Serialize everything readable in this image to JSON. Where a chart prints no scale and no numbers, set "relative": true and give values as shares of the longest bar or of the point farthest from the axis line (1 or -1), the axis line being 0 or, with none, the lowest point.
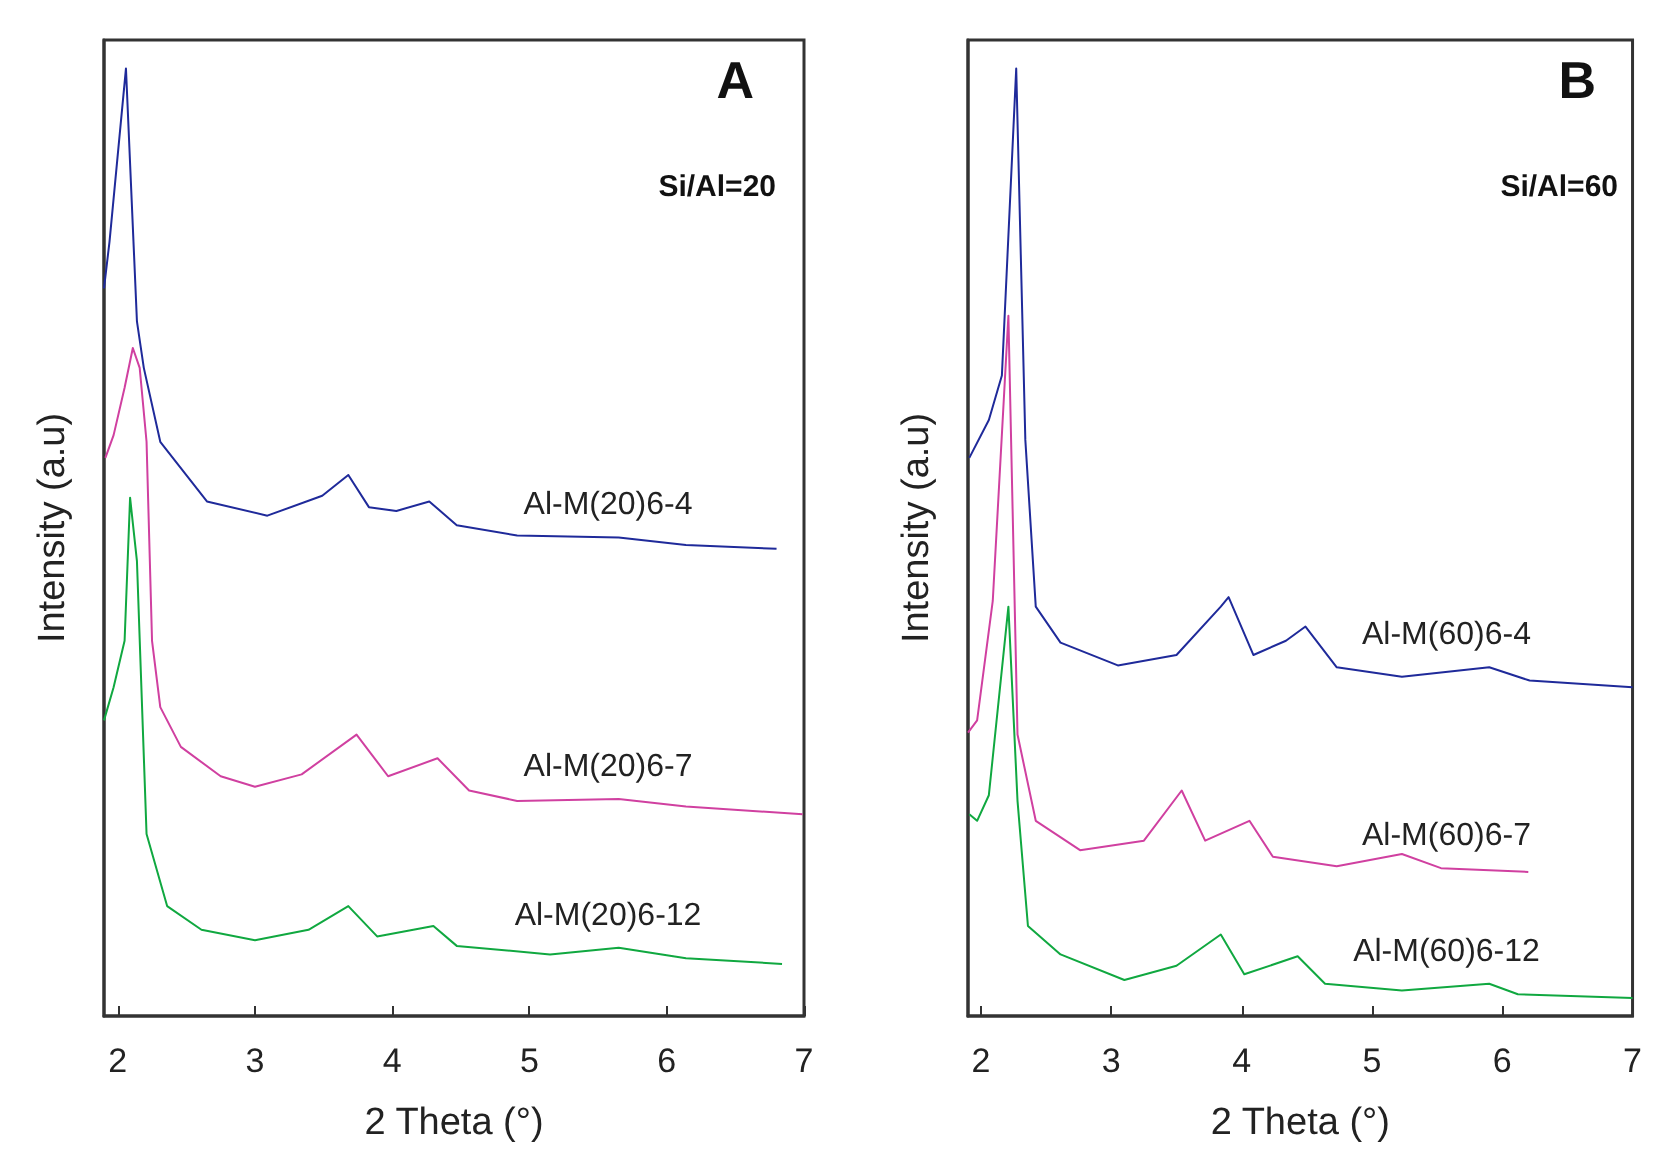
{
  "chart_data": [
    {
      "type": "line",
      "title": "A",
      "xlabel": "2 Theta (°)",
      "ylabel": "Intensity (a.u)",
      "annotations": [
        "Si/Al=20"
      ],
      "relative": true,
      "xlim": [
        1.9,
        7
      ],
      "xticks": [
        2,
        3,
        4,
        5,
        6,
        7
      ],
      "tick_labels": "x",
      "grid": false,
      "legend": false,
      "marker": "none",
      "line_style": "solid",
      "series": [
        {
          "name": "Al-M(20)6-4",
          "color": "#1f2a9a",
          "x": [
            1.9,
            1.94,
            2.06,
            2.14,
            2.19,
            2.31,
            2.65,
            3.09,
            3.49,
            3.68,
            3.83,
            4.03,
            4.27,
            4.47,
            4.91,
            5.65,
            6.14,
            6.8
          ],
          "values": [
            0.768,
            0.817,
            1.0,
            0.733,
            0.684,
            0.606,
            0.543,
            0.528,
            0.549,
            0.571,
            0.537,
            0.533,
            0.543,
            0.518,
            0.507,
            0.505,
            0.497,
            0.493
          ]
        },
        {
          "name": "Al-M(20)6-7",
          "color": "#d040a0",
          "x": [
            1.91,
            1.97,
            2.05,
            2.11,
            2.16,
            2.21,
            2.25,
            2.31,
            2.46,
            2.75,
            3.0,
            3.34,
            3.74,
            3.97,
            4.33,
            4.56,
            4.91,
            5.65,
            6.14,
            6.99
          ],
          "values": [
            0.589,
            0.613,
            0.663,
            0.705,
            0.684,
            0.606,
            0.396,
            0.326,
            0.284,
            0.253,
            0.242,
            0.255,
            0.297,
            0.253,
            0.272,
            0.238,
            0.227,
            0.229,
            0.221,
            0.213
          ]
        },
        {
          "name": "Al-M(20)6-12",
          "color": "#10a840",
          "x": [
            1.9,
            1.97,
            2.05,
            2.09,
            2.14,
            2.21,
            2.36,
            2.61,
            3.0,
            3.39,
            3.68,
            3.89,
            4.3,
            4.47,
            5.15,
            5.65,
            6.14,
            6.84
          ],
          "values": [
            0.312,
            0.347,
            0.396,
            0.547,
            0.48,
            0.192,
            0.116,
            0.091,
            0.08,
            0.091,
            0.116,
            0.084,
            0.095,
            0.074,
            0.065,
            0.072,
            0.061,
            0.055
          ]
        }
      ]
    },
    {
      "type": "line",
      "title": "B",
      "xlabel": "2 Theta (°)",
      "ylabel": "Intensity (a.u)",
      "annotations": [
        "Si/Al=60"
      ],
      "relative": true,
      "xlim": [
        1.9,
        7
      ],
      "xticks": [
        2,
        3,
        4,
        5,
        6,
        7
      ],
      "tick_labels": "x",
      "grid": false,
      "legend": false,
      "marker": "none",
      "line_style": "solid",
      "series": [
        {
          "name": "Al-M(60)6-4",
          "color": "#1f2a9a",
          "x": [
            1.91,
            2.06,
            2.16,
            2.27,
            2.34,
            2.42,
            2.61,
            3.05,
            3.5,
            3.84,
            3.9,
            4.09,
            4.34,
            4.49,
            4.73,
            5.23,
            5.9,
            6.21,
            7.0
          ],
          "values": [
            0.589,
            0.629,
            0.676,
            1.0,
            0.608,
            0.432,
            0.394,
            0.37,
            0.381,
            0.432,
            0.442,
            0.381,
            0.396,
            0.411,
            0.368,
            0.358,
            0.368,
            0.354,
            0.347
          ]
        },
        {
          "name": "Al-M(60)6-7",
          "color": "#d040a0",
          "x": [
            1.9,
            1.97,
            2.09,
            2.21,
            2.28,
            2.42,
            2.76,
            3.25,
            3.54,
            3.72,
            4.06,
            4.24,
            4.73,
            5.23,
            5.53,
            6.2
          ],
          "values": [
            0.299,
            0.312,
            0.438,
            0.739,
            0.297,
            0.206,
            0.175,
            0.185,
            0.238,
            0.185,
            0.206,
            0.168,
            0.158,
            0.171,
            0.156,
            0.152
          ]
        },
        {
          "name": "Al-M(60)6-12",
          "color": "#10a840",
          "x": [
            1.91,
            1.97,
            2.06,
            2.21,
            2.28,
            2.36,
            2.61,
            3.1,
            3.5,
            3.84,
            4.02,
            4.43,
            4.64,
            5.23,
            5.9,
            6.12,
            7.0
          ],
          "values": [
            0.213,
            0.206,
            0.233,
            0.432,
            0.227,
            0.095,
            0.065,
            0.038,
            0.053,
            0.086,
            0.044,
            0.063,
            0.034,
            0.027,
            0.034,
            0.023,
            0.019
          ]
        }
      ]
    }
  ]
}
